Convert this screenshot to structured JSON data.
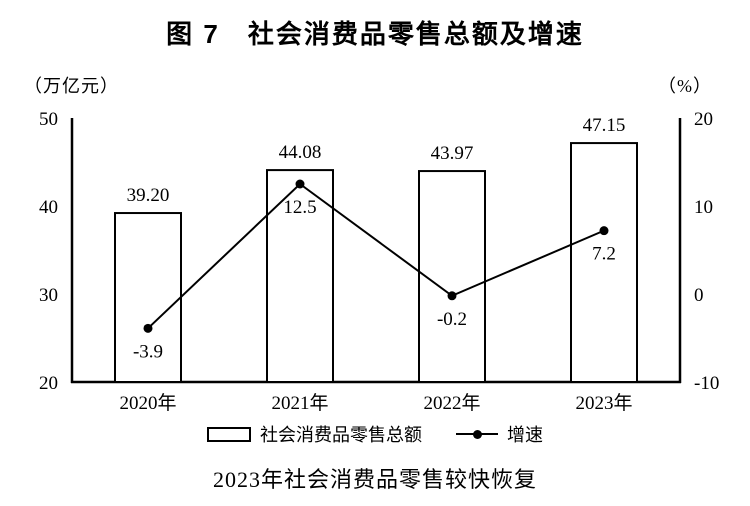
{
  "title": "图 7　社会消费品零售总额及增速",
  "caption": "2023年社会消费品零售较快恢复",
  "chart_data": {
    "type": "bar+line combo",
    "categories": [
      "2020年",
      "2021年",
      "2022年",
      "2023年"
    ],
    "series": [
      {
        "name": "社会消费品零售总额",
        "type": "bar",
        "axis": "left",
        "values": [
          39.2,
          44.08,
          43.97,
          47.15
        ],
        "labels": [
          "39.20",
          "44.08",
          "43.97",
          "47.15"
        ]
      },
      {
        "name": "增速",
        "type": "line",
        "axis": "right",
        "values": [
          -3.9,
          12.5,
          -0.2,
          7.2
        ],
        "labels": [
          "-3.9",
          "12.5",
          "-0.2",
          "7.2"
        ]
      }
    ],
    "left_axis": {
      "unit": "（万亿元）",
      "min": 20,
      "max": 50,
      "ticks": [
        50,
        40,
        30,
        20
      ]
    },
    "right_axis": {
      "unit": "（%）",
      "min": -10,
      "max": 20,
      "ticks": [
        20,
        10,
        0,
        -10
      ]
    },
    "grid": false,
    "legend_position": "bottom",
    "colors": {
      "foreground": "#000000",
      "background": "#ffffff"
    }
  }
}
